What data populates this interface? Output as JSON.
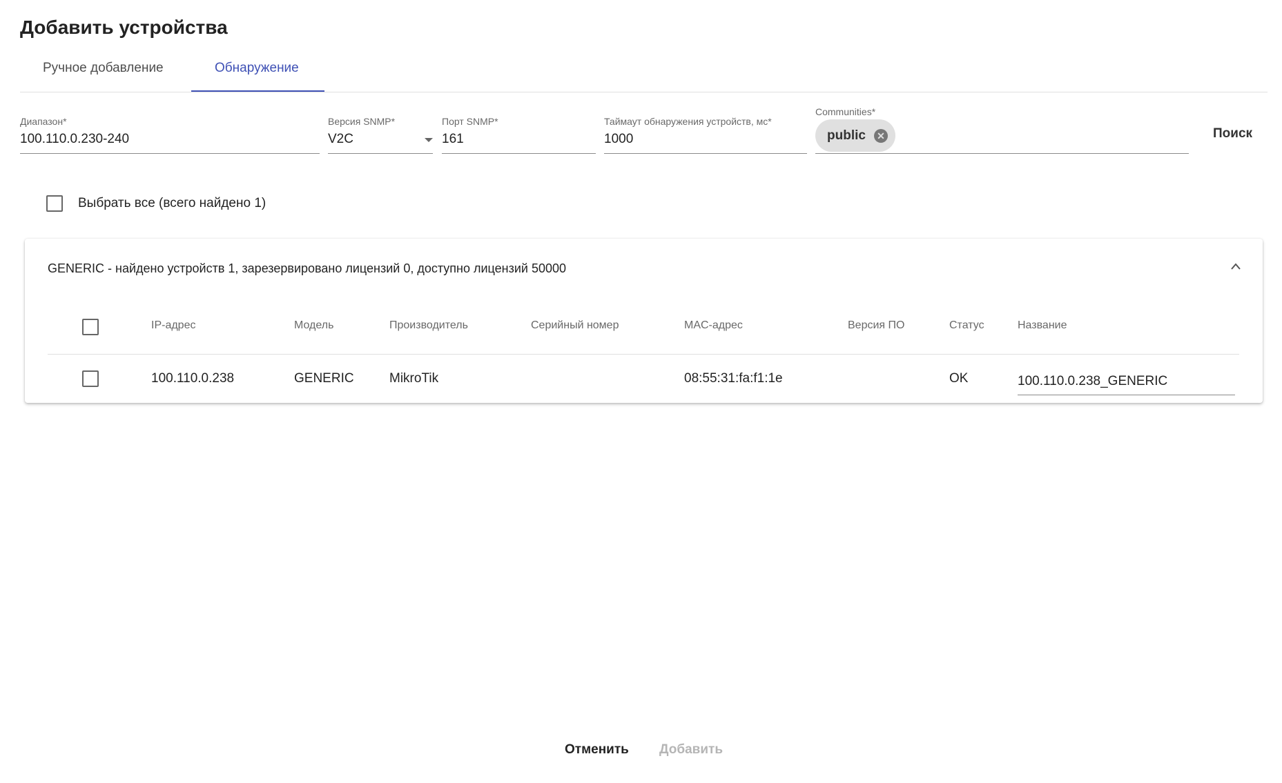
{
  "title": "Добавить устройства",
  "tabs": [
    {
      "label": "Ручное добавление",
      "active": false
    },
    {
      "label": "Обнаружение",
      "active": true
    }
  ],
  "form": {
    "range": {
      "label": "Диапазон*",
      "value": "100.110.0.230-240"
    },
    "snmp_version": {
      "label": "Версия SNMP*",
      "value": "V2C"
    },
    "snmp_port": {
      "label": "Порт SNMP*",
      "value": "161"
    },
    "timeout": {
      "label": "Таймаут обнаружения устройств, мс*",
      "value": "1000"
    },
    "communities": {
      "label": "Communities*",
      "chips": [
        "public"
      ]
    },
    "search_label": "Поиск"
  },
  "select_all_label": "Выбрать все (всего найдено 1)",
  "group": {
    "header": "GENERIC - найдено устройств 1, зарезервировано лицензий 0, доступно лицензий 50000",
    "columns": [
      "IP-адрес",
      "Модель",
      "Производитель",
      "Серийный номер",
      "MAC-адрес",
      "Версия ПО",
      "Статус",
      "Название"
    ],
    "rows": [
      {
        "ip": "100.110.0.238",
        "model": "GENERIC",
        "vendor": "MikroTik",
        "serial": "",
        "mac": "08:55:31:fa:f1:1e",
        "firmware": "",
        "status": "OK",
        "name": "100.110.0.238_GENERIC"
      }
    ]
  },
  "footer": {
    "cancel": "Отменить",
    "add": "Добавить"
  },
  "colors": {
    "accent": "#3f51b5"
  }
}
